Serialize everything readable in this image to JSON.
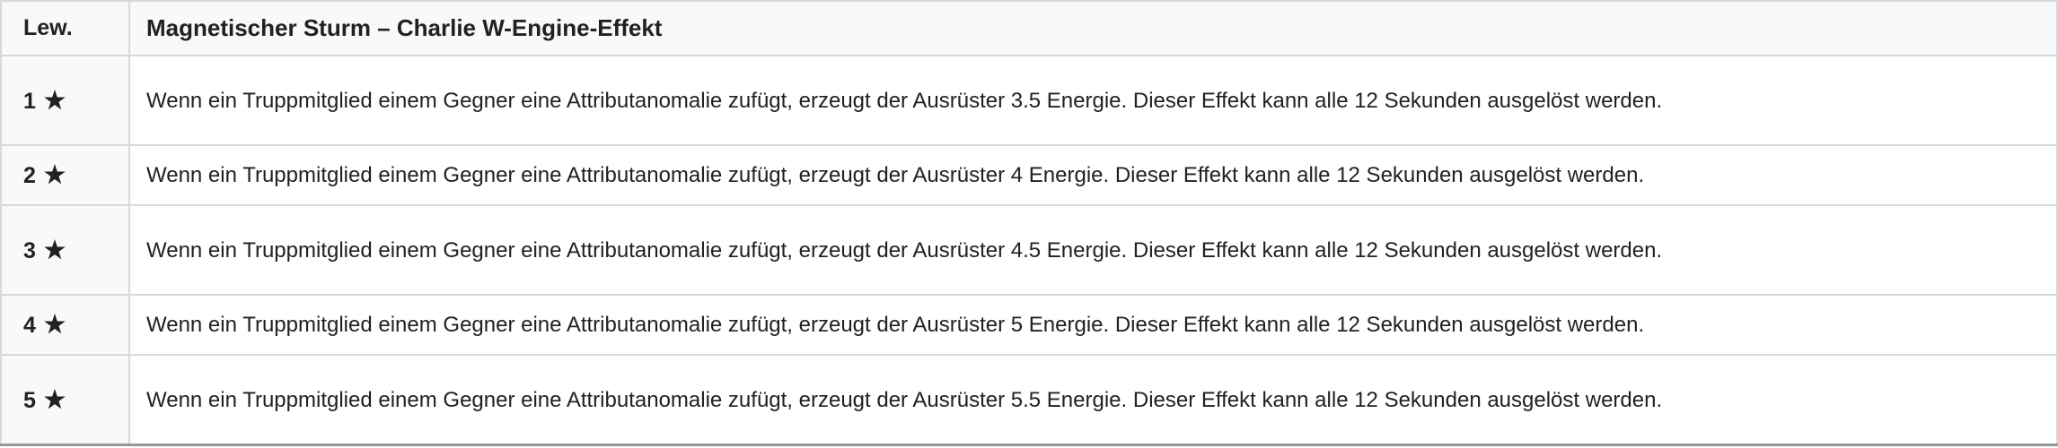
{
  "table": {
    "header": {
      "level_label": "Lew.",
      "title": "Magnetischer Sturm – Charlie W-Engine-Effekt"
    },
    "rows": [
      {
        "level": "1",
        "star": "★",
        "description": "Wenn ein Truppmitglied einem Gegner eine Attributanomalie zufügt, erzeugt der Ausrüster 3.5 Energie. Dieser Effekt kann alle 12 Sekunden ausgelöst werden."
      },
      {
        "level": "2",
        "star": "★",
        "description": "Wenn ein Truppmitglied einem Gegner eine Attributanomalie zufügt, erzeugt der Ausrüster 4 Energie. Dieser Effekt kann alle 12 Sekunden ausgelöst werden."
      },
      {
        "level": "3",
        "star": "★",
        "description": "Wenn ein Truppmitglied einem Gegner eine Attributanomalie zufügt, erzeugt der Ausrüster 4.5 Energie. Dieser Effekt kann alle 12 Sekunden ausgelöst werden."
      },
      {
        "level": "4",
        "star": "★",
        "description": "Wenn ein Truppmitglied einem Gegner eine Attributanomalie zufügt, erzeugt der Ausrüster 5 Energie. Dieser Effekt kann alle 12 Sekunden ausgelöst werden."
      },
      {
        "level": "5",
        "star": "★",
        "description": "Wenn ein Truppmitglied einem Gegner eine Attributanomalie zufügt, erzeugt der Ausrüster 5.5 Energie. Dieser Effekt kann alle 12 Sekunden ausgelöst werden."
      }
    ],
    "colors": {
      "header_bg": "#f8f9fa",
      "level_column_bg": "#f8f9fa",
      "body_bg": "#ffffff",
      "border": "#d6d8db",
      "bottom_border": "#95979a",
      "text": "#202122"
    }
  }
}
